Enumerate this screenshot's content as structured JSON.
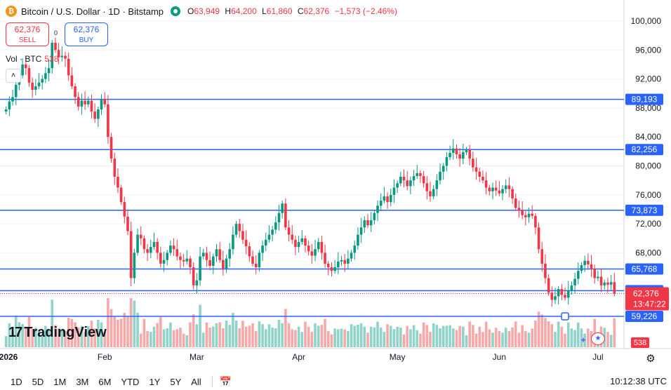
{
  "header": {
    "coin_glyph": "₿",
    "title": "Bitcoin / U.S. Dollar · 1D · Bitstamp",
    "ohlc": {
      "o_label": "O",
      "o_value": "63,949",
      "h_label": "H",
      "h_value": "64,200",
      "l_label": "L",
      "l_value": "61,860",
      "c_label": "C",
      "c_value": "62,376",
      "change": "−1,573 (−2.46%)"
    }
  },
  "trade": {
    "sell_price": "62,376",
    "sell_label": "SELL",
    "buy_price": "62,376",
    "buy_label": "BUY",
    "spread": "0"
  },
  "volume_legend": {
    "label": "Vol · BTC",
    "value": "538"
  },
  "collapse_glyph": "˄",
  "logo": {
    "mark": "17",
    "text": "TradingView"
  },
  "toolbar": {
    "timeframes": [
      "1D",
      "5D",
      "1M",
      "3M",
      "6M",
      "YTD",
      "1Y",
      "5Y",
      "All"
    ],
    "clock": "10:12:38 UTC",
    "calendar_icon": "calendar-range-icon",
    "settings_icon": "gear-icon"
  },
  "colors": {
    "up": "#089981",
    "down": "#f23645",
    "up_vol": "#8fd3c9",
    "down_vol": "#f7a9a9",
    "hline": "#2962ff",
    "grid": "#f0f3fa"
  },
  "chart_data": {
    "type": "candlestick",
    "title": "Bitcoin / U.S. Dollar · 1D · Bitstamp",
    "y_axis": {
      "ticks": [
        "100,000",
        "96,000",
        "92,000",
        "88,000",
        "84,000",
        "80,000",
        "76,000",
        "72,000",
        "68,000"
      ],
      "tick_values": [
        100000,
        96000,
        92000,
        88000,
        84000,
        80000,
        76000,
        72000,
        68000
      ],
      "range": [
        57000,
        101500
      ]
    },
    "x_axis": {
      "labels": [
        "2026",
        "Feb",
        "Mar",
        "Apr",
        "May",
        "Jun",
        "Jul"
      ],
      "label_day": [
        0,
        31,
        59,
        90,
        120,
        151,
        181
      ],
      "range_days": [
        0,
        187
      ]
    },
    "horizontal_lines": [
      {
        "value": 89193,
        "label": "89,193"
      },
      {
        "value": 82256,
        "label": "82,256"
      },
      {
        "value": 73873,
        "label": "73,873"
      },
      {
        "value": 65768,
        "label": "65,768"
      },
      {
        "value": 62768,
        "label": "62,768"
      },
      {
        "value": 59226,
        "label": "59,226"
      }
    ],
    "last_price": {
      "value": 62376,
      "label": "62,376",
      "countdown": "13:47:22"
    },
    "volume_badge": "538",
    "closes": [
      87800,
      88900,
      89500,
      91200,
      92500,
      94000,
      93500,
      91500,
      90500,
      91000,
      91500,
      92000,
      92800,
      93500,
      97000,
      96000,
      95000,
      95200,
      94800,
      92500,
      91000,
      89500,
      88200,
      89000,
      88500,
      89000,
      87500,
      86500,
      87800,
      89200,
      88500,
      84000,
      81000,
      78500,
      77000,
      75000,
      73000,
      71000,
      64500,
      68000,
      70500,
      70000,
      68500,
      68000,
      68800,
      69500,
      68000,
      66500,
      67000,
      68000,
      69000,
      68500,
      67500,
      67000,
      66800,
      67200,
      66000,
      63500,
      64200,
      67500,
      68000,
      67000,
      66200,
      67500,
      68500,
      67000,
      65800,
      67200,
      68500,
      70500,
      72000,
      71000,
      69800,
      68900,
      67500,
      66500,
      66000,
      68000,
      69000,
      69800,
      70500,
      71200,
      72200,
      73500,
      74800,
      71500,
      70500,
      69800,
      68800,
      69500,
      70000,
      69000,
      68200,
      67600,
      68500,
      69500,
      68000,
      66500,
      66000,
      65500,
      66000,
      66800,
      67000,
      66500,
      67200,
      68000,
      69000,
      70500,
      71500,
      72500,
      71800,
      72500,
      73500,
      74500,
      75200,
      75800,
      75000,
      76000,
      77000,
      77600,
      78500,
      78000,
      77200,
      78000,
      78600,
      79000,
      78600,
      77600,
      76500,
      75800,
      76800,
      78000,
      79200,
      80000,
      81200,
      81800,
      82400,
      81600,
      81000,
      81900,
      82200,
      81000,
      79800,
      79200,
      78500,
      78000,
      77000,
      76500,
      77000,
      76600,
      76200,
      76800,
      77300,
      76800,
      75500,
      74200,
      73800,
      73200,
      72900,
      73400,
      73100,
      71500,
      68500,
      66500,
      64500,
      62500,
      61500,
      62000,
      63000,
      62200,
      61800,
      62800,
      63500,
      64400,
      65500,
      66300,
      66900,
      66400,
      65800,
      64500,
      64700,
      63500,
      63900,
      63600,
      63949,
      62376
    ]
  }
}
